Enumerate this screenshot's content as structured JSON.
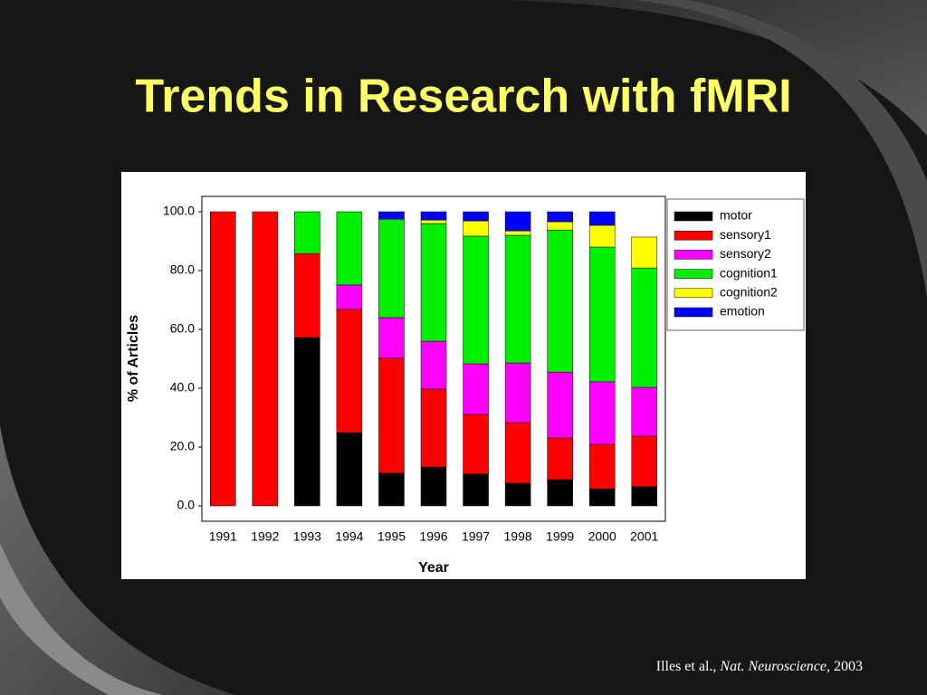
{
  "chart_data": {
    "type": "stacked-bar",
    "title": "Trends in Research with fMRI",
    "x_label": "Year",
    "y_label": "% of Articles",
    "categories": [
      "1991",
      "1992",
      "1993",
      "1994",
      "1995",
      "1996",
      "1997",
      "1998",
      "1999",
      "2000",
      "2001"
    ],
    "series": [
      {
        "name": "motor",
        "color": "#000000",
        "values": [
          0,
          0,
          57.2,
          24.9,
          11.1,
          13.2,
          10.8,
          7.7,
          8.9,
          5.8,
          6.5
        ]
      },
      {
        "name": "sensory1",
        "color": "#ff0000",
        "values": [
          100,
          100,
          28.6,
          41.9,
          39.1,
          26.5,
          20.3,
          20.6,
          14.2,
          15.1,
          17.2
        ]
      },
      {
        "name": "sensory2",
        "color": "#ff00ff",
        "values": [
          0,
          0,
          0,
          8.3,
          13.8,
          16.3,
          17.2,
          20.3,
          22.4,
          21.3,
          16.6
        ]
      },
      {
        "name": "cognition1",
        "color": "#00ee00",
        "values": [
          0,
          0,
          14.2,
          24.9,
          33.5,
          40.0,
          43.4,
          43.4,
          48.3,
          45.8,
          40.6
        ]
      },
      {
        "name": "cognition2",
        "color": "#ffff00",
        "values": [
          0,
          0,
          0,
          0,
          0,
          1.2,
          5.2,
          1.5,
          2.8,
          7.4,
          10.5
        ]
      },
      {
        "name": "emotion",
        "color": "#0000ff",
        "values": [
          0,
          0,
          0,
          0,
          2.5,
          2.8,
          3.1,
          6.5,
          3.4,
          4.6,
          0
        ]
      }
    ],
    "ylim": [
      0,
      100
    ],
    "yticks": [
      {
        "value": 0,
        "label": "0.0"
      },
      {
        "value": 20,
        "label": "20.0"
      },
      {
        "value": 40,
        "label": "40.0"
      },
      {
        "value": 60,
        "label": "60.0"
      },
      {
        "value": 80,
        "label": "80.0"
      },
      {
        "value": 100,
        "label": "100.0"
      }
    ],
    "legend": "top-right",
    "grid": false
  },
  "citation": {
    "authors": "Illes et al.,",
    "journal": "Nat. Neuroscience,",
    "year": "2003"
  }
}
